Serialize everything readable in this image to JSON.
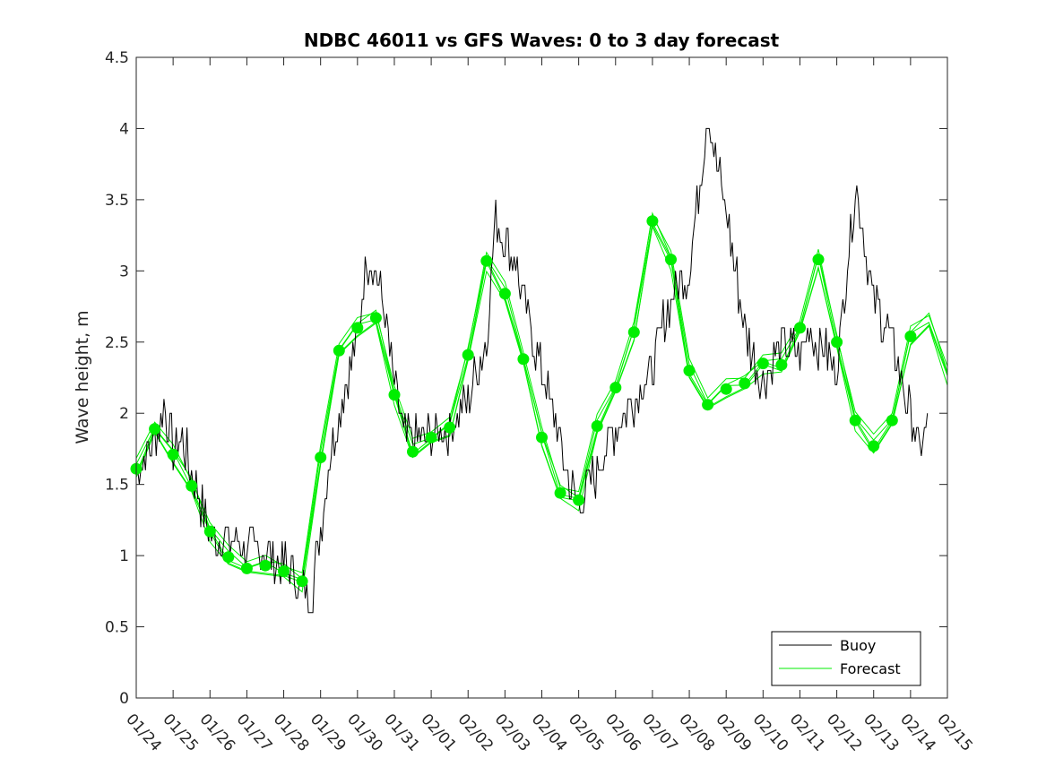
{
  "chart_data": {
    "type": "line",
    "title": "NDBC 46011 vs GFS Waves: 0 to 3 day forecast",
    "xlabel": "",
    "ylabel": "Wave height, m",
    "xlim": [
      0,
      22
    ],
    "ylim": [
      0,
      4.5
    ],
    "x_tick_labels": [
      "01/24",
      "01/25",
      "01/26",
      "01/27",
      "01/28",
      "01/29",
      "01/30",
      "01/31",
      "02/01",
      "02/02",
      "02/03",
      "02/04",
      "02/05",
      "02/06",
      "02/07",
      "02/08",
      "02/09",
      "02/10",
      "02/11",
      "02/12",
      "02/13",
      "02/14",
      "02/15"
    ],
    "y_tick_labels": [
      "0",
      "0.5",
      "1",
      "1.5",
      "2",
      "2.5",
      "3",
      "3.5",
      "4",
      "4.5"
    ],
    "y_ticks": [
      0,
      0.5,
      1,
      1.5,
      2,
      2.5,
      3,
      3.5,
      4,
      4.5
    ],
    "legend": {
      "position": "bottom-right",
      "entries": [
        "Buoy",
        "Forecast"
      ]
    },
    "colors": {
      "buoy": "#000000",
      "forecast": "#00ee00",
      "marker": "#00ee00"
    },
    "series": [
      {
        "name": "Buoy",
        "x": [
          0,
          0.5,
          0.75,
          1.0,
          1.25,
          1.5,
          2.0,
          2.5,
          3.0,
          3.5,
          4.0,
          4.5,
          4.75,
          5.0,
          5.25,
          5.5,
          6.0,
          6.25,
          6.5,
          6.75,
          7.0,
          7.25,
          7.5,
          8.0,
          8.5,
          9.0,
          9.5,
          9.75,
          10.0,
          10.25,
          10.5,
          11.0,
          11.5,
          11.75,
          12.0,
          12.5,
          13.0,
          13.5,
          14.0,
          14.25,
          14.5,
          15.0,
          15.5,
          16.0,
          16.5,
          17.0,
          17.5,
          18.0,
          18.25,
          18.5,
          19.0,
          19.5,
          20.0,
          20.5,
          21.0,
          21.25,
          21.5
        ],
        "y": [
          1.6,
          1.8,
          2.05,
          1.75,
          1.8,
          1.6,
          1.15,
          1.1,
          1.05,
          1.0,
          0.95,
          0.75,
          0.72,
          1.2,
          1.7,
          2.0,
          2.5,
          3.1,
          3.0,
          2.7,
          2.2,
          1.85,
          1.8,
          1.85,
          1.9,
          2.1,
          2.5,
          3.4,
          3.2,
          3.1,
          2.8,
          2.3,
          1.8,
          1.5,
          1.35,
          1.6,
          1.9,
          2.1,
          2.3,
          2.6,
          2.8,
          3.0,
          4.1,
          3.4,
          2.6,
          2.2,
          2.5,
          2.4,
          2.6,
          2.5,
          2.3,
          3.6,
          2.8,
          2.5,
          2.0,
          1.75,
          1.9
        ]
      },
      {
        "name": "Forecast",
        "x": [
          0.0,
          0.5,
          1.0,
          1.5,
          2.0,
          2.5,
          3.0,
          3.5,
          4.0,
          4.5,
          5.0,
          5.5,
          6.0,
          6.5,
          7.0,
          7.5,
          8.0,
          8.5,
          9.0,
          9.5,
          10.0,
          10.5,
          11.0,
          11.5,
          12.0,
          12.5,
          13.0,
          13.5,
          14.0,
          14.5,
          15.0,
          15.5,
          16.0,
          16.5,
          17.0,
          17.5,
          18.0,
          18.5,
          19.0,
          19.5,
          20.0,
          20.5,
          21.0,
          21.5,
          22.0
        ],
        "y": [
          1.6,
          1.89,
          1.71,
          1.49,
          1.17,
          0.99,
          0.91,
          0.93,
          0.89,
          0.82,
          1.69,
          2.44,
          2.6,
          2.67,
          2.13,
          1.74,
          1.82,
          1.9,
          2.41,
          3.07,
          2.84,
          2.38,
          1.83,
          1.44,
          1.39,
          1.91,
          2.18,
          2.57,
          3.35,
          3.08,
          2.3,
          2.06,
          2.17,
          2.21,
          2.35,
          2.34,
          2.6,
          3.08,
          2.5,
          1.95,
          1.77,
          1.95,
          2.54,
          2.65,
          2.27
        ]
      },
      {
        "name": "Forecast points",
        "x": [
          0.0,
          0.5,
          1.0,
          1.5,
          2.0,
          2.5,
          3.0,
          3.5,
          4.0,
          4.5,
          5.0,
          5.5,
          6.0,
          6.5,
          7.0,
          7.5,
          8.0,
          8.5,
          9.0,
          9.5,
          10.0,
          10.5,
          11.0,
          11.5,
          12.0,
          12.5,
          13.0,
          13.5,
          14.0,
          14.5,
          15.0,
          15.5,
          16.0,
          16.5,
          17.0,
          17.5,
          18.0,
          18.5,
          19.0,
          19.5,
          20.0,
          20.5,
          21.0
        ],
        "y": [
          1.61,
          1.89,
          1.71,
          1.49,
          1.17,
          0.99,
          0.91,
          0.93,
          0.89,
          0.82,
          1.69,
          2.44,
          2.6,
          2.67,
          2.13,
          1.73,
          1.83,
          1.9,
          2.41,
          3.07,
          2.84,
          2.38,
          1.83,
          1.44,
          1.39,
          1.91,
          2.18,
          2.57,
          3.35,
          3.08,
          2.3,
          2.06,
          2.17,
          2.21,
          2.35,
          2.34,
          2.6,
          3.08,
          2.5,
          1.95,
          1.77,
          1.95,
          2.54
        ]
      }
    ]
  }
}
